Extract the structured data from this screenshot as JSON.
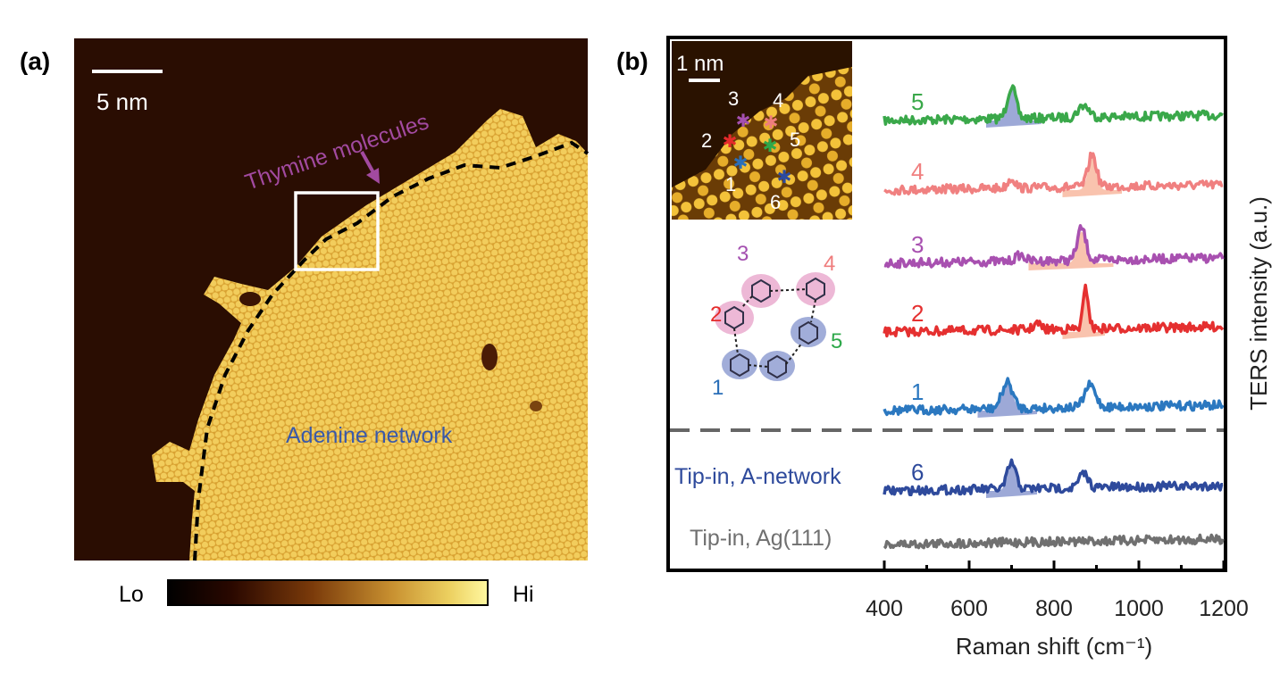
{
  "panel_a": {
    "label": "(a)",
    "scale_bar_label": "5 nm",
    "annotation_thymine": "Thymine molecules",
    "annotation_adenine": "Adenine network",
    "colorbar": {
      "low_label": "Lo",
      "high_label": "Hi",
      "colors": [
        "#000000",
        "#3a0d00",
        "#7a3a0a",
        "#c28a2a",
        "#e8c84a",
        "#fff590"
      ]
    },
    "colors": {
      "thymine_text": "#a24aa0",
      "adenine_text": "#3a59a8",
      "boundary": "#000000"
    }
  },
  "panel_b": {
    "label": "(b)",
    "inset_scale_label": "1 nm",
    "inset_points": [
      {
        "id": "3",
        "color": "#a450b0"
      },
      {
        "id": "4",
        "color": "#ef7d7d"
      },
      {
        "id": "2",
        "color": "#e52b2b"
      },
      {
        "id": "5",
        "color": "#2ea84a"
      },
      {
        "id": "1",
        "color": "#2b6fb8"
      },
      {
        "id": "6",
        "color": "#2b4aa0"
      }
    ],
    "molecule_labels": [
      {
        "text": "3",
        "color": "#a450b0"
      },
      {
        "text": "4",
        "color": "#ef7d7d"
      },
      {
        "text": "2",
        "color": "#e52b2b"
      },
      {
        "text": "5",
        "color": "#2ea84a"
      },
      {
        "text": "1",
        "color": "#2b6fb8"
      }
    ],
    "chart_data": {
      "type": "line",
      "xlabel": "Raman shift (cm⁻¹)",
      "ylabel": "TERS intensity (a.u.)",
      "xlim": [
        400,
        1200
      ],
      "xticks": [
        400,
        600,
        800,
        1000,
        1200
      ],
      "series": [
        {
          "name": "5",
          "color": "#3aa84a",
          "offset": 5,
          "peaks": [
            [
              700,
              0.8,
              14
            ],
            [
              870,
              0.3,
              18
            ]
          ],
          "fill": {
            "range": [
              640,
              770
            ],
            "color": "#8c9ad0"
          }
        },
        {
          "name": "4",
          "color": "#f08080",
          "offset": 4,
          "peaks": [
            [
              700,
              0.25,
              12
            ],
            [
              890,
              0.8,
              14
            ]
          ],
          "fill": {
            "range": [
              820,
              960
            ],
            "color": "#f8b8a0"
          }
        },
        {
          "name": "3",
          "color": "#a850b0",
          "offset": 3,
          "peaks": [
            [
              865,
              0.8,
              14
            ],
            [
              720,
              0.15,
              15
            ]
          ],
          "fill": {
            "range": [
              740,
              940
            ],
            "color": "#f8b8a0"
          }
        },
        {
          "name": "2",
          "color": "#e53030",
          "offset": 2,
          "peaks": [
            [
              875,
              1.0,
              9
            ],
            [
              760,
              0.15,
              12
            ]
          ],
          "fill": {
            "range": [
              820,
              920
            ],
            "color": "#f8b8a0"
          }
        },
        {
          "name": "1",
          "color": "#2b78c0",
          "offset": 1,
          "peaks": [
            [
              690,
              0.65,
              18
            ],
            [
              885,
              0.55,
              18
            ]
          ],
          "fill": {
            "range": [
              620,
              760
            ],
            "color": "#8c9ad0"
          }
        },
        {
          "name": "6",
          "color": "#2e4a9c",
          "offset": -0.5,
          "peaks": [
            [
              700,
              0.65,
              14
            ],
            [
              870,
              0.35,
              15
            ]
          ],
          "fill": {
            "range": [
              640,
              760
            ],
            "color": "#8c9ad0"
          }
        },
        {
          "name": "",
          "color": "#707070",
          "offset": -1.5,
          "peaks": [],
          "fill": null
        }
      ],
      "row_labels": [
        {
          "text": "Tip-in, A-network",
          "color": "#2e4a9c"
        },
        {
          "text": "Tip-in, Ag(111)",
          "color": "#707070"
        }
      ]
    }
  }
}
